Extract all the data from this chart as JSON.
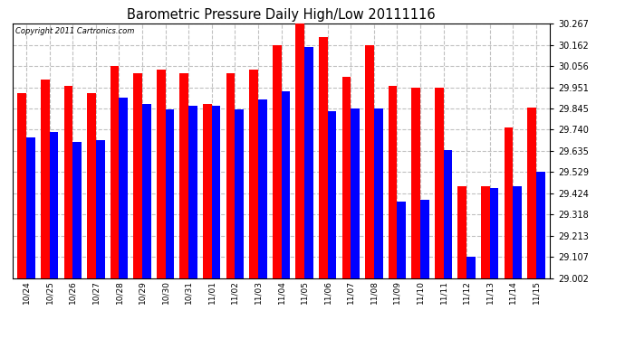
{
  "title": "Barometric Pressure Daily High/Low 20111116",
  "copyright": "Copyright 2011 Cartronics.com",
  "categories": [
    "10/24",
    "10/25",
    "10/26",
    "10/27",
    "10/28",
    "10/29",
    "10/30",
    "10/31",
    "11/01",
    "11/02",
    "11/03",
    "11/04",
    "11/05",
    "11/06",
    "11/07",
    "11/08",
    "11/09",
    "11/10",
    "11/11",
    "11/12",
    "11/13",
    "11/14",
    "11/15"
  ],
  "highs": [
    29.921,
    29.99,
    29.96,
    29.921,
    30.056,
    30.02,
    30.04,
    30.02,
    29.87,
    30.02,
    30.04,
    30.162,
    30.267,
    30.2,
    30.001,
    30.162,
    29.96,
    29.951,
    29.951,
    29.46,
    29.46,
    29.75,
    29.85
  ],
  "lows": [
    29.7,
    29.73,
    29.68,
    29.69,
    29.9,
    29.87,
    29.84,
    29.86,
    29.86,
    29.84,
    29.89,
    29.93,
    30.15,
    29.83,
    29.845,
    29.845,
    29.38,
    29.39,
    29.64,
    29.107,
    29.45,
    29.46,
    29.53
  ],
  "bar_width": 0.38,
  "high_color": "#ff0000",
  "low_color": "#0000ff",
  "background_color": "#ffffff",
  "grid_color": "#c0c0c0",
  "y_min": 29.002,
  "y_max": 30.267,
  "yticks": [
    29.002,
    29.107,
    29.213,
    29.318,
    29.424,
    29.529,
    29.635,
    29.74,
    29.845,
    29.951,
    30.056,
    30.162,
    30.267
  ]
}
